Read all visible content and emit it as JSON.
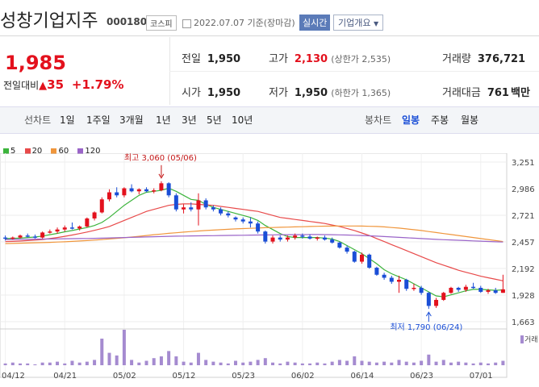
{
  "header": {
    "title": "성창기업지주",
    "code": "000180",
    "market": "코스피",
    "date_text": "2022.07.07 기준(장마감)",
    "realtime_label": "실시간",
    "company_button": "기업개요"
  },
  "quote": {
    "price": "1,985",
    "change_label": "전일대비",
    "change_value": "35",
    "change_rate": "+1.79%",
    "prev_close_label": "전일",
    "prev_close": "1,950",
    "high_label": "고가",
    "high": "2,130",
    "upper_limit_text": "(상한가 2,535)",
    "volume_label": "거래량",
    "volume": "376,721",
    "open_label": "시가",
    "open": "1,950",
    "low_label": "저가",
    "low": "1,950",
    "lower_limit_text": "(하한가 1,365)",
    "amount_label": "거래대금",
    "amount": "761",
    "amount_unit": "백만"
  },
  "toolbar": {
    "line_chart": "선차트",
    "periods": [
      "1일",
      "1주일",
      "3개월",
      "1년",
      "3년",
      "5년",
      "10년"
    ],
    "candle_chart": "봉차트",
    "candle_periods": [
      "일봉",
      "주봉",
      "월봉"
    ],
    "active_candle": "일봉"
  },
  "colors": {
    "up": "#e3111d",
    "down": "#1a4ed6",
    "ma5": "#3cb43c",
    "ma20": "#e84a4a",
    "ma60": "#f0963c",
    "ma120": "#9a64c8",
    "volume": "#a58bd0"
  },
  "chart_data": {
    "type": "candlestick",
    "legend": [
      "5",
      "20",
      "60",
      "120"
    ],
    "y_ticks": [
      "3,251",
      "2,986",
      "2,721",
      "2,457",
      "2,192",
      "1,928",
      "1,663"
    ],
    "ylim": [
      1663,
      3251
    ],
    "x_ticks": [
      "04/12",
      "04/21",
      "05/02",
      "05/12",
      "05/23",
      "06/02",
      "06/14",
      "06/23",
      "07/01"
    ],
    "annotations": {
      "high": "최고 3,060 (05/06)",
      "low": "최저 1,790 (06/24)"
    },
    "volume_label": "거래",
    "candles": [
      [
        2500,
        2520,
        2470,
        2490
      ],
      [
        2490,
        2510,
        2480,
        2500
      ],
      [
        2500,
        2530,
        2490,
        2520
      ],
      [
        2520,
        2540,
        2500,
        2510
      ],
      [
        2510,
        2530,
        2490,
        2500
      ],
      [
        2500,
        2560,
        2490,
        2550
      ],
      [
        2550,
        2580,
        2540,
        2560
      ],
      [
        2560,
        2600,
        2540,
        2580
      ],
      [
        2580,
        2620,
        2560,
        2600
      ],
      [
        2600,
        2650,
        2580,
        2590
      ],
      [
        2590,
        2620,
        2570,
        2610
      ],
      [
        2610,
        2700,
        2600,
        2690
      ],
      [
        2690,
        2760,
        2670,
        2750
      ],
      [
        2750,
        2900,
        2740,
        2880
      ],
      [
        2880,
        2980,
        2860,
        2950
      ],
      [
        2950,
        3000,
        2900,
        2920
      ],
      [
        2920,
        3000,
        2900,
        2990
      ],
      [
        2990,
        3030,
        2950,
        2960
      ],
      [
        2960,
        2990,
        2930,
        2980
      ],
      [
        2980,
        3000,
        2950,
        2960
      ],
      [
        2960,
        2990,
        2940,
        2970
      ],
      [
        2970,
        3060,
        2960,
        3040
      ],
      [
        3040,
        3050,
        2900,
        2920
      ],
      [
        2920,
        2940,
        2760,
        2780
      ],
      [
        2780,
        2830,
        2740,
        2800
      ],
      [
        2800,
        2850,
        2760,
        2780
      ],
      [
        2780,
        2940,
        2620,
        2870
      ],
      [
        2870,
        2890,
        2780,
        2800
      ],
      [
        2800,
        2820,
        2760,
        2780
      ],
      [
        2780,
        2800,
        2720,
        2740
      ],
      [
        2740,
        2760,
        2700,
        2720
      ],
      [
        2700,
        2710,
        2660,
        2680
      ],
      [
        2680,
        2700,
        2640,
        2660
      ],
      [
        2660,
        2700,
        2600,
        2640
      ],
      [
        2640,
        2660,
        2540,
        2560
      ],
      [
        2560,
        2570,
        2440,
        2460
      ],
      [
        2460,
        2520,
        2440,
        2500
      ],
      [
        2500,
        2520,
        2460,
        2480
      ],
      [
        2480,
        2520,
        2460,
        2500
      ],
      [
        2500,
        2540,
        2480,
        2520
      ],
      [
        2520,
        2540,
        2490,
        2510
      ],
      [
        2510,
        2530,
        2480,
        2490
      ],
      [
        2490,
        2510,
        2470,
        2500
      ],
      [
        2500,
        2520,
        2470,
        2480
      ],
      [
        2480,
        2500,
        2440,
        2450
      ],
      [
        2450,
        2460,
        2390,
        2400
      ],
      [
        2400,
        2420,
        2340,
        2360
      ],
      [
        2360,
        2370,
        2250,
        2260
      ],
      [
        2260,
        2350,
        2240,
        2330
      ],
      [
        2330,
        2340,
        2190,
        2200
      ],
      [
        2200,
        2210,
        2120,
        2130
      ],
      [
        2130,
        2150,
        2080,
        2100
      ],
      [
        2100,
        2120,
        2040,
        2060
      ],
      [
        2060,
        2120,
        1950,
        2080
      ],
      [
        2080,
        2090,
        1970,
        1990
      ],
      [
        1990,
        2040,
        1970,
        2000
      ],
      [
        2000,
        2020,
        1930,
        1950
      ],
      [
        1950,
        1960,
        1790,
        1820
      ],
      [
        1820,
        1900,
        1800,
        1880
      ],
      [
        1880,
        1960,
        1870,
        1950
      ],
      [
        1950,
        2010,
        1940,
        2000
      ],
      [
        2000,
        2010,
        1960,
        1980
      ],
      [
        1980,
        2030,
        1960,
        2010
      ],
      [
        2010,
        2050,
        1990,
        2000
      ],
      [
        2000,
        2020,
        1950,
        1960
      ],
      [
        1960,
        1990,
        1940,
        1975
      ],
      [
        1975,
        2000,
        1940,
        1950
      ],
      [
        1950,
        2130,
        1950,
        1985
      ]
    ],
    "volumes": [
      2,
      3,
      2,
      2,
      1,
      3,
      3,
      4,
      2,
      5,
      3,
      4,
      6,
      30,
      14,
      11,
      40,
      6,
      3,
      5,
      8,
      10,
      16,
      10,
      4,
      3,
      14,
      6,
      4,
      3,
      2,
      5,
      3,
      4,
      6,
      8,
      3,
      2,
      4,
      3,
      2,
      2,
      3,
      2,
      4,
      6,
      5,
      10,
      5,
      4,
      3,
      4,
      3,
      6,
      4,
      3,
      5,
      12,
      4,
      6,
      3,
      4,
      3,
      2,
      3,
      2,
      3,
      5
    ],
    "series": [
      {
        "name": "5",
        "values": [
          2490,
          2492,
          2495,
          2500,
          2505,
          2515,
          2528,
          2541,
          2557,
          2570,
          2585,
          2600,
          2620,
          2650,
          2700,
          2760,
          2820,
          2870,
          2920,
          2950,
          2960,
          2970,
          2990,
          2960,
          2920,
          2880,
          2870,
          2830,
          2800,
          2780,
          2760,
          2740,
          2720,
          2700,
          2670,
          2620,
          2580,
          2540,
          2510,
          2500,
          2500,
          2500,
          2500,
          2495,
          2485,
          2460,
          2420,
          2380,
          2340,
          2290,
          2240,
          2180,
          2140,
          2110,
          2080,
          2040,
          2000,
          1960,
          1920,
          1910,
          1930,
          1950,
          1970,
          1985,
          1985,
          1980,
          1975,
          1980
        ]
      },
      {
        "name": "20",
        "values": [
          2460,
          2462,
          2465,
          2470,
          2475,
          2480,
          2490,
          2500,
          2512,
          2525,
          2540,
          2555,
          2572,
          2590,
          2610,
          2640,
          2670,
          2700,
          2730,
          2760,
          2780,
          2800,
          2820,
          2830,
          2835,
          2835,
          2830,
          2825,
          2820,
          2810,
          2800,
          2790,
          2780,
          2770,
          2760,
          2740,
          2720,
          2700,
          2690,
          2680,
          2670,
          2660,
          2650,
          2640,
          2625,
          2610,
          2590,
          2570,
          2545,
          2520,
          2490,
          2460,
          2430,
          2400,
          2370,
          2340,
          2310,
          2280,
          2250,
          2225,
          2200,
          2175,
          2155,
          2135,
          2115,
          2100,
          2085,
          2070
        ]
      },
      {
        "name": "60",
        "values": [
          2440,
          2442,
          2444,
          2446,
          2448,
          2450,
          2452,
          2455,
          2458,
          2462,
          2466,
          2470,
          2475,
          2480,
          2486,
          2492,
          2498,
          2505,
          2512,
          2520,
          2528,
          2535,
          2542,
          2548,
          2554,
          2560,
          2565,
          2570,
          2574,
          2578,
          2582,
          2586,
          2589,
          2592,
          2595,
          2598,
          2600,
          2602,
          2604,
          2606,
          2608,
          2610,
          2612,
          2613,
          2614,
          2615,
          2615,
          2615,
          2614,
          2612,
          2610,
          2606,
          2600,
          2594,
          2586,
          2578,
          2570,
          2560,
          2550,
          2540,
          2530,
          2520,
          2510,
          2500,
          2490,
          2480,
          2470,
          2460
        ]
      },
      {
        "name": "120",
        "values": [
          2480,
          2481,
          2482,
          2483,
          2484,
          2485,
          2486,
          2487,
          2488,
          2489,
          2490,
          2491,
          2492,
          2494,
          2496,
          2498,
          2500,
          2502,
          2504,
          2506,
          2508,
          2510,
          2512,
          2514,
          2515,
          2516,
          2517,
          2518,
          2519,
          2520,
          2521,
          2522,
          2523,
          2524,
          2525,
          2526,
          2527,
          2528,
          2528,
          2529,
          2529,
          2530,
          2530,
          2529,
          2528,
          2527,
          2525,
          2523,
          2520,
          2517,
          2514,
          2510,
          2506,
          2502,
          2498,
          2494,
          2490,
          2486,
          2482,
          2479,
          2476,
          2473,
          2470,
          2467,
          2464,
          2461,
          2458,
          2455
        ]
      }
    ]
  }
}
